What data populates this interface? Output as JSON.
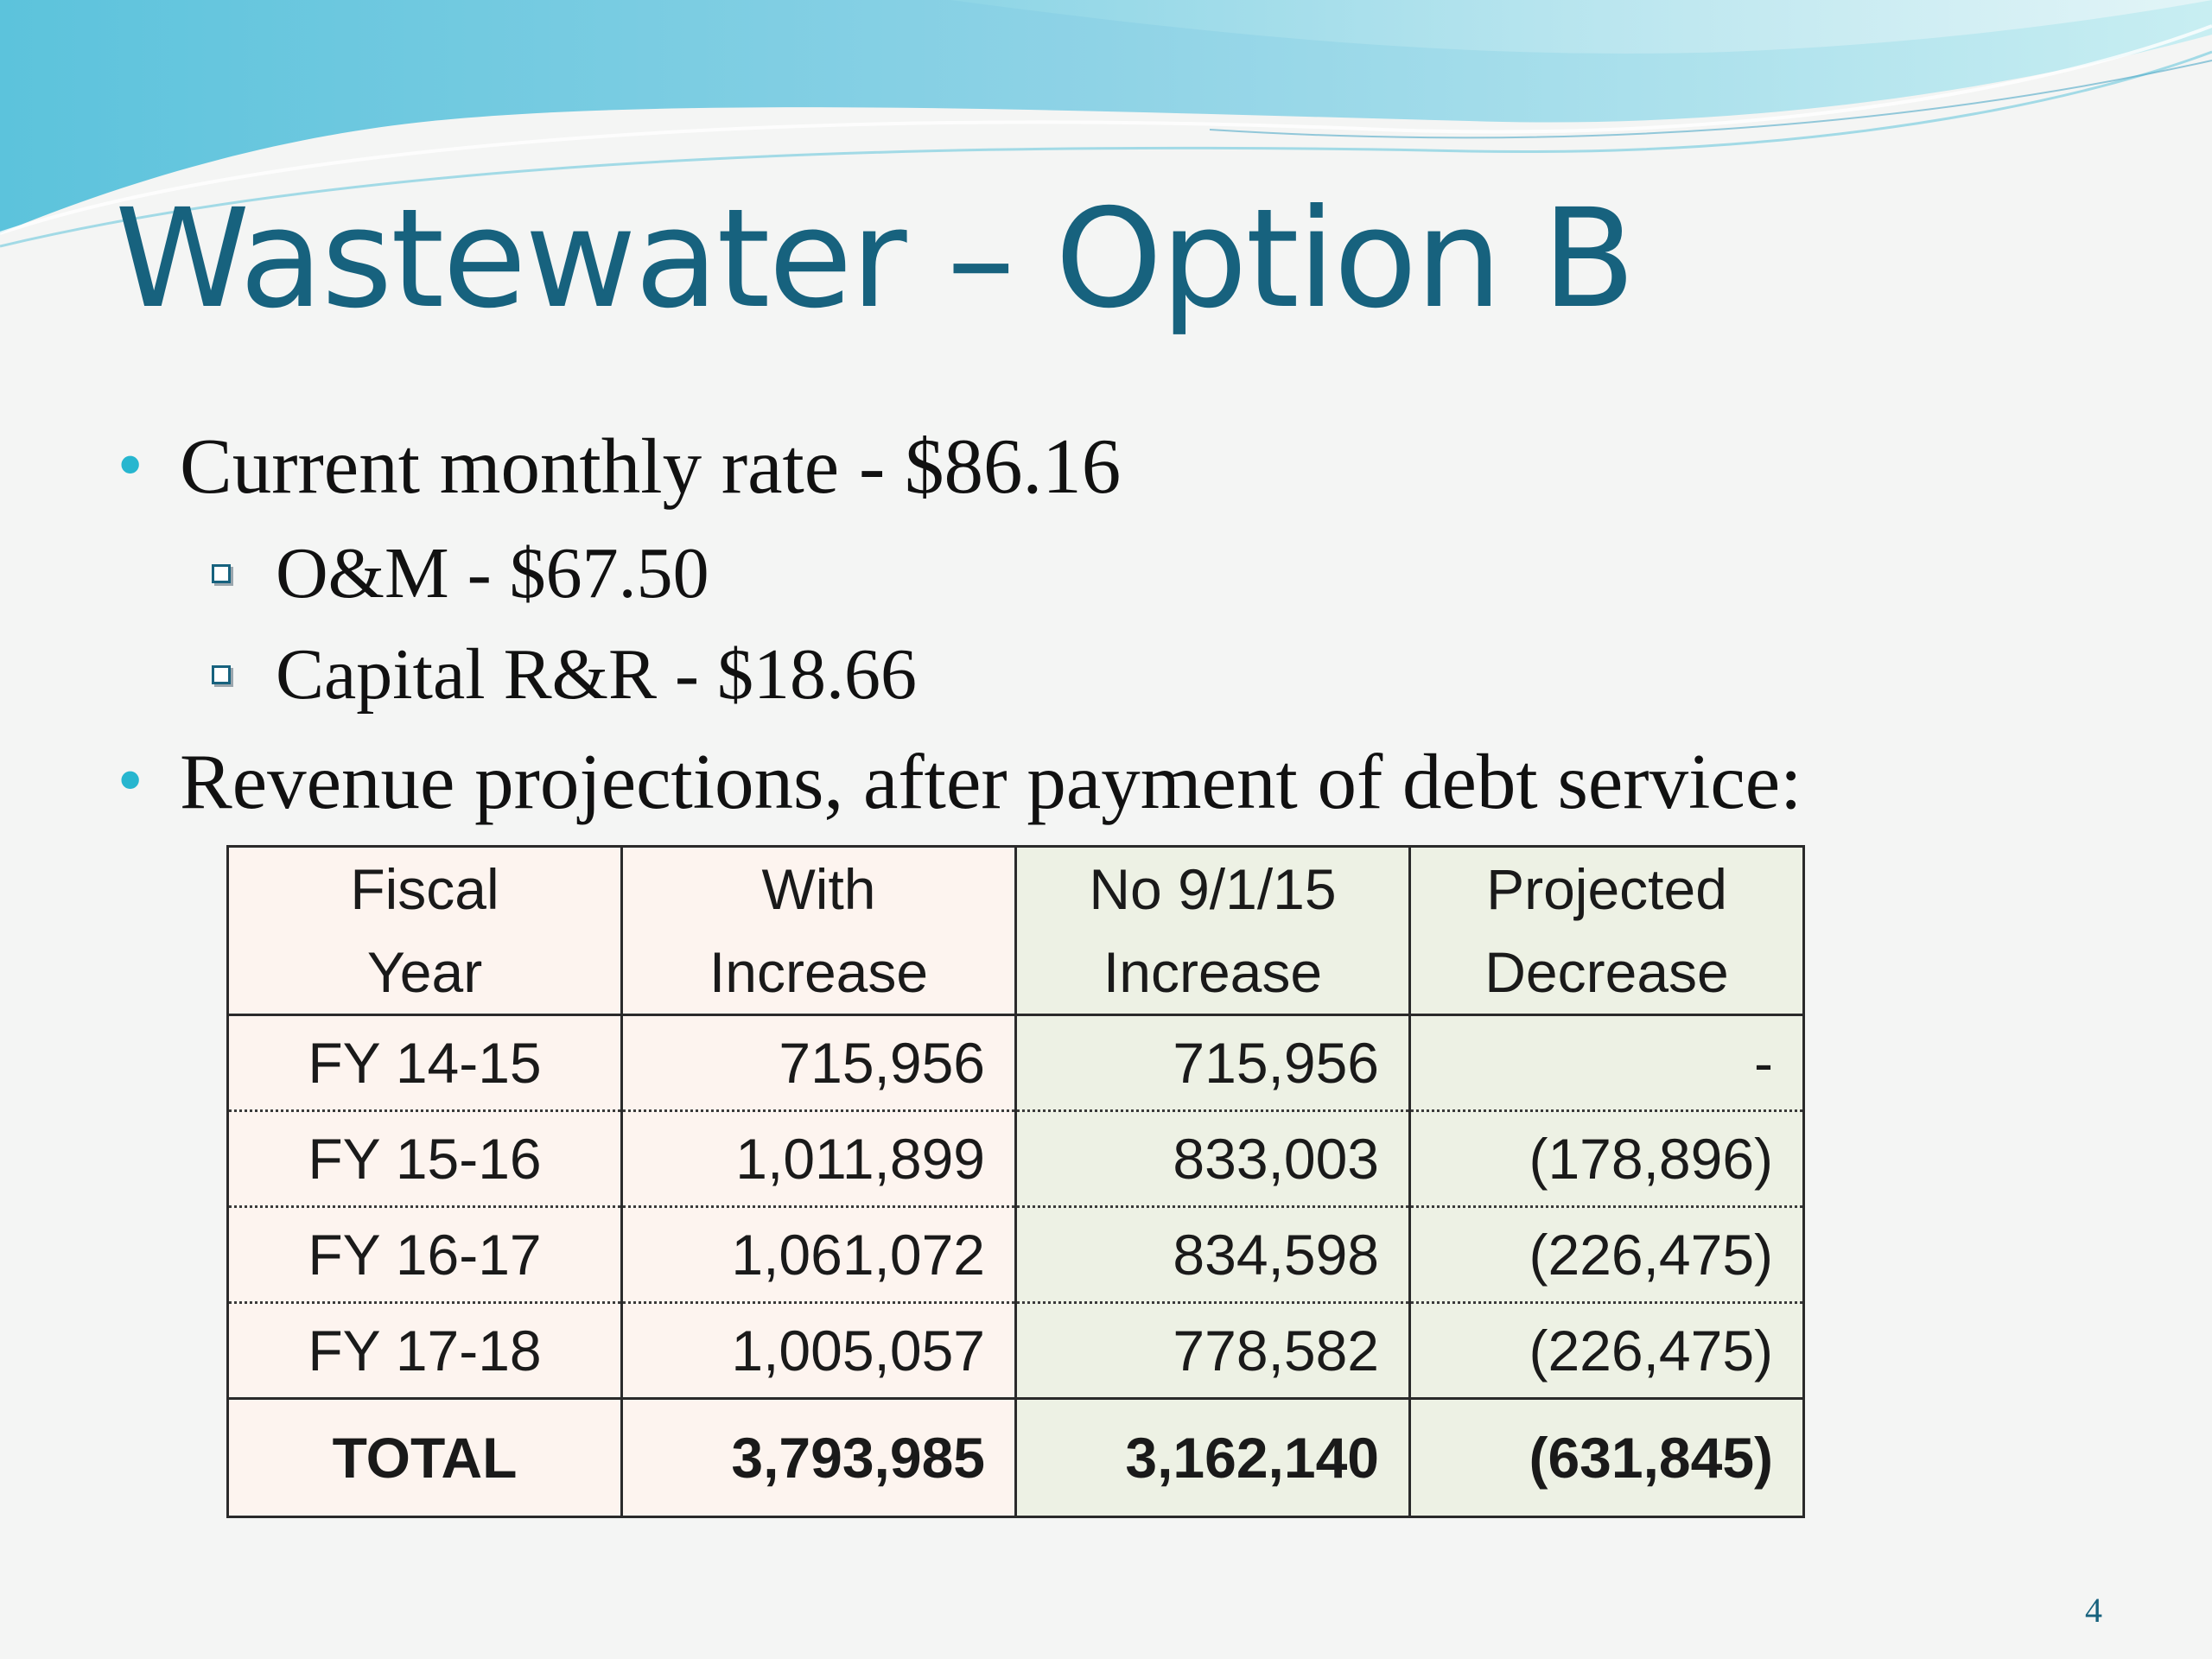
{
  "slide": {
    "title": "Wastewater – Option B",
    "page_number": "4",
    "accent_color": "#17627e",
    "bullet_color": "#27b6cf"
  },
  "bullets": [
    {
      "text": "Current monthly rate - $86.16",
      "sub": [
        "O&M - $67.50",
        "Capital R&R - $18.66"
      ]
    },
    {
      "text": "Revenue projections, after payment of debt service:"
    }
  ],
  "table": {
    "headers": [
      [
        "Fiscal",
        "Year"
      ],
      [
        "With",
        "Increase"
      ],
      [
        "No 9/1/15",
        "Increase"
      ],
      [
        "Projected",
        "Decrease"
      ]
    ],
    "rows": [
      [
        "FY 14-15",
        "715,956",
        "715,956",
        "-"
      ],
      [
        "FY 15-16",
        "1,011,899",
        "833,003",
        "(178,896)"
      ],
      [
        "FY 16-17",
        "1,061,072",
        "834,598",
        "(226,475)"
      ],
      [
        "FY 17-18",
        "1,005,057",
        "778,582",
        "(226,475)"
      ]
    ],
    "total": [
      "TOTAL",
      "3,793,985",
      "3,162,140",
      "(631,845)"
    ]
  }
}
